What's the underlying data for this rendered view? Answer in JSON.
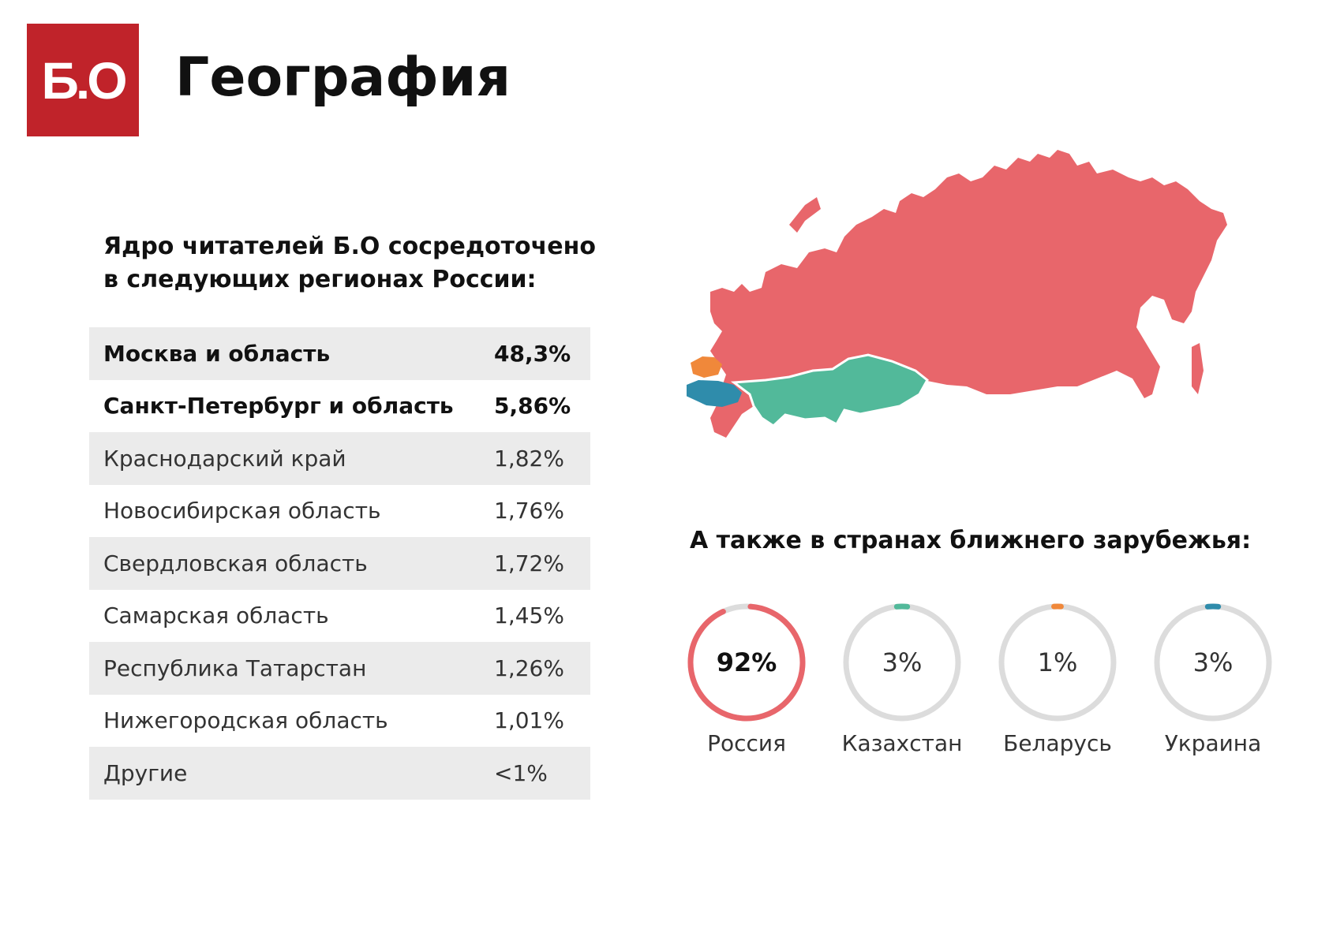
{
  "logo": {
    "text": "Б.О",
    "color": "#c0232a"
  },
  "page_title": "География",
  "subtitle": "Ядро читателей Б.О сосредоточено в следующих регионах России:",
  "regions": [
    {
      "name": "Москва и область",
      "value": "48,3%",
      "bold": true
    },
    {
      "name": "Санкт-Петербург и область",
      "value": "5,86%",
      "bold": true
    },
    {
      "name": "Краснодарский край",
      "value": "1,82%"
    },
    {
      "name": "Новосибирская область",
      "value": "1,76%"
    },
    {
      "name": "Свердловская область",
      "value": "1,72%"
    },
    {
      "name": "Самарская область",
      "value": "1,45%"
    },
    {
      "name": "Республика Татарстан",
      "value": "1,26%"
    },
    {
      "name": "Нижегородская область",
      "value": "1,01%"
    },
    {
      "name": "Другие",
      "value": "<1%"
    }
  ],
  "map_colors": {
    "russia": "#e8666b",
    "kazakhstan": "#52b99a",
    "belarus": "#f0883a",
    "ukraine": "#2f8cab"
  },
  "abroad_title": "А также в странах ближнего зарубежья:",
  "chart_data": {
    "type": "pie",
    "title": "А также в странах ближнего зарубежья:",
    "categories": [
      "Россия",
      "Казахстан",
      "Беларусь",
      "Украина"
    ],
    "values": [
      92,
      3,
      1,
      3
    ],
    "labels": [
      "92%",
      "3%",
      "1%",
      "3%"
    ],
    "colors": [
      "#e8666b",
      "#52b99a",
      "#f0883a",
      "#2f8cab"
    ],
    "track_color": "#dcdcdc"
  }
}
